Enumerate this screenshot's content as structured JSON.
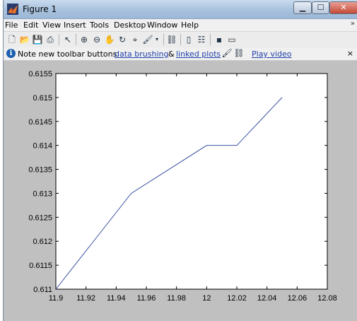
{
  "window": {
    "title": "Figure 1"
  },
  "menu": {
    "items": [
      "File",
      "Edit",
      "View",
      "Insert",
      "Tools",
      "Desktop",
      "Window",
      "Help"
    ]
  },
  "toolbar": {
    "icons": [
      "new-figure-icon",
      "open-file-icon",
      "save-icon",
      "print-icon",
      "pointer-icon",
      "zoom-in-icon",
      "zoom-out-icon",
      "pan-icon",
      "rotate-icon",
      "data-cursor-icon",
      "brush-icon",
      "link-icon",
      "colorbar-icon",
      "legend-icon",
      "hide-plot-tools-icon",
      "show-plot-tools-icon"
    ]
  },
  "infobar": {
    "note": "Note new toolbar buttons:",
    "link1": "data brushing",
    "amp": "&",
    "link2": "linked plots",
    "video": "Play video",
    "close": "×"
  },
  "chart_data": {
    "type": "line",
    "x": [
      11.9,
      11.95,
      12.0,
      12.02,
      12.05
    ],
    "y": [
      0.611,
      0.613,
      0.614,
      0.614,
      0.615
    ],
    "xlim": [
      11.9,
      12.08
    ],
    "ylim": [
      0.611,
      0.6155
    ],
    "xticks": [
      "11.9",
      "11.92",
      "11.94",
      "11.96",
      "11.98",
      "12",
      "12.02",
      "12.04",
      "12.06",
      "12.08"
    ],
    "yticks": [
      "0.611",
      "0.6115",
      "0.612",
      "0.6125",
      "0.613",
      "0.6135",
      "0.614",
      "0.6145",
      "0.615",
      "0.6155"
    ],
    "line_color": "#3a4fa0",
    "title": "",
    "xlabel": "",
    "ylabel": ""
  }
}
